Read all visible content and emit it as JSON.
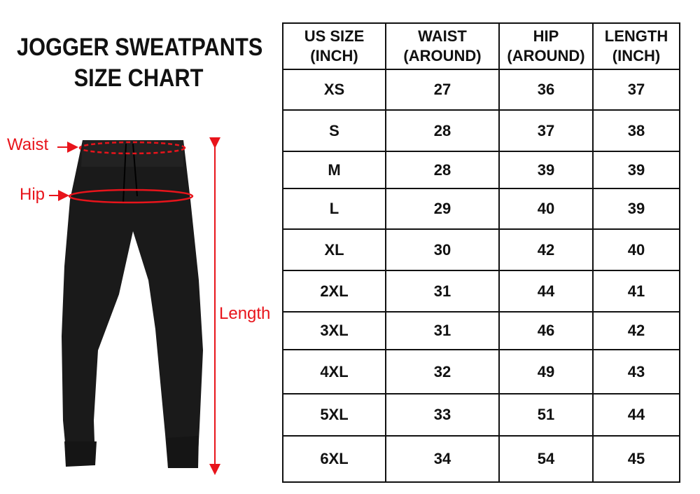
{
  "title_line1": "JOGGER SWEATPANTS",
  "title_line2": "SIZE CHART",
  "labels": {
    "waist": "Waist",
    "hip": "Hip",
    "length": "Length"
  },
  "accent_color": "#e8141b",
  "table": {
    "headers": [
      [
        "US SIZE",
        "(INCH)"
      ],
      [
        "WAIST",
        "(AROUND)"
      ],
      [
        "HIP",
        "(AROUND)"
      ],
      [
        "LENGTH",
        "(INCH)"
      ]
    ],
    "rows": [
      [
        "XS",
        "27",
        "36",
        "37"
      ],
      [
        "S",
        "28",
        "37",
        "38"
      ],
      [
        "M",
        "28",
        "39",
        "39"
      ],
      [
        "L",
        "29",
        "40",
        "39"
      ],
      [
        "XL",
        "30",
        "42",
        "40"
      ],
      [
        "2XL",
        "31",
        "44",
        "41"
      ],
      [
        "3XL",
        "31",
        "46",
        "42"
      ],
      [
        "4XL",
        "32",
        "49",
        "43"
      ],
      [
        "5XL",
        "33",
        "51",
        "44"
      ],
      [
        "6XL",
        "34",
        "54",
        "45"
      ]
    ]
  }
}
